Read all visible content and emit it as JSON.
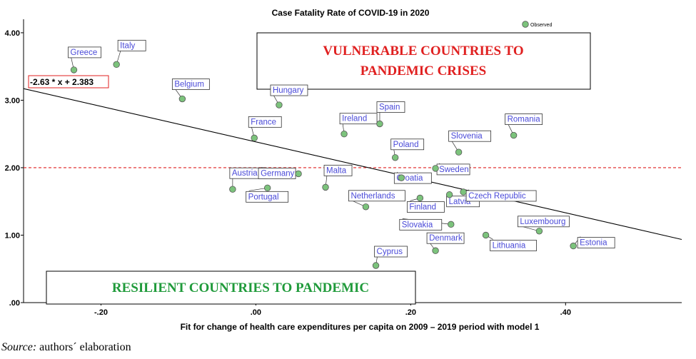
{
  "chart_data": {
    "type": "scatter",
    "title": "Case Fatality Rate of COVID-19 in 2020",
    "xlabel": "Fit  for change of health care expenditures per capita on 2009 – 2019 period with model 1",
    "ylabel": "",
    "xlim": [
      -0.3,
      0.55
    ],
    "ylim": [
      0.0,
      4.2
    ],
    "x_ticks": [
      -0.2,
      0.0,
      0.2,
      0.4
    ],
    "x_tick_labels": [
      "-.20",
      ".00",
      ".20",
      ".40"
    ],
    "y_ticks": [
      0.0,
      1.0,
      2.0,
      3.0,
      4.0
    ],
    "y_tick_labels": [
      ".00",
      "1.00",
      "2.00",
      "3.00",
      "4.00"
    ],
    "grid": false,
    "legend": {
      "entries": [
        "Observed"
      ],
      "placement": "top-right"
    },
    "reference_line": {
      "y": 2.0,
      "style": "dashed",
      "color": "#e02020"
    },
    "fit_line": {
      "slope": -2.63,
      "intercept": 2.383,
      "label": "-2.63 * x + 2.383"
    },
    "points": [
      {
        "name": "Greece",
        "x": -0.235,
        "y": 3.45
      },
      {
        "name": "Italy",
        "x": -0.18,
        "y": 3.53
      },
      {
        "name": "Belgium",
        "x": -0.095,
        "y": 3.02
      },
      {
        "name": "Hungary",
        "x": 0.03,
        "y": 2.93
      },
      {
        "name": "France",
        "x": -0.002,
        "y": 2.44
      },
      {
        "name": "Ireland",
        "x": 0.114,
        "y": 2.5
      },
      {
        "name": "Spain",
        "x": 0.16,
        "y": 2.65
      },
      {
        "name": "Romania",
        "x": 0.333,
        "y": 2.48
      },
      {
        "name": "Slovenia",
        "x": 0.262,
        "y": 2.23
      },
      {
        "name": "Poland",
        "x": 0.18,
        "y": 2.15
      },
      {
        "name": "Croatia",
        "x": 0.188,
        "y": 1.85
      },
      {
        "name": "Sweden",
        "x": 0.232,
        "y": 1.99
      },
      {
        "name": "Malta",
        "x": 0.09,
        "y": 1.71
      },
      {
        "name": "Austria",
        "x": -0.03,
        "y": 1.68
      },
      {
        "name": "Portugal",
        "x": 0.015,
        "y": 1.7
      },
      {
        "name": "Germany",
        "x": 0.055,
        "y": 1.91
      },
      {
        "name": "Netherlands",
        "x": 0.142,
        "y": 1.42
      },
      {
        "name": "Finland",
        "x": 0.212,
        "y": 1.55
      },
      {
        "name": "Latvia",
        "x": 0.25,
        "y": 1.6
      },
      {
        "name": "Czech Republic",
        "x": 0.268,
        "y": 1.64
      },
      {
        "name": "Slovakia",
        "x": 0.252,
        "y": 1.16
      },
      {
        "name": "Denmark",
        "x": 0.232,
        "y": 0.77
      },
      {
        "name": "Lithuania",
        "x": 0.297,
        "y": 1.0
      },
      {
        "name": "Luxembourg",
        "x": 0.366,
        "y": 1.06
      },
      {
        "name": "Estonia",
        "x": 0.41,
        "y": 0.84
      },
      {
        "name": "Cyprus",
        "x": 0.155,
        "y": 0.55
      }
    ],
    "annotations": [
      {
        "text": [
          "VULNERABLE COUNTRIES TO",
          "PANDEMIC CRISES"
        ],
        "color": "#e02020"
      },
      {
        "text": [
          "RESILIENT COUNTRIES TO PANDEMIC"
        ],
        "color": "#1f9a3a"
      }
    ]
  },
  "source": {
    "prefix": "Source:",
    "text": " authors´ elaboration"
  },
  "colors": {
    "point_fill": "#7cc37c",
    "point_stroke": "#555555",
    "label_text": "#4a4ad8",
    "fit_line": "#000000"
  }
}
